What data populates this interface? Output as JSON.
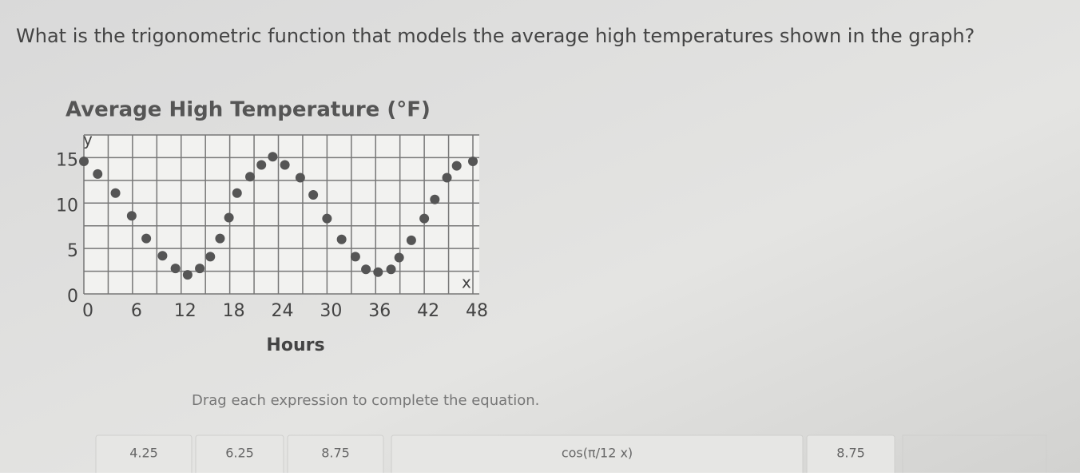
{
  "question": "What is the trigonometric function that models the average high temperatures shown in the graph?",
  "chart_data": {
    "type": "scatter",
    "title": "Average High Temperature (°F)",
    "x_label": "Hours",
    "x_axis_letter": "x",
    "y_axis_letter": "y",
    "x": [
      0,
      1.7,
      3.9,
      5.9,
      7.7,
      9.7,
      11.3,
      12.8,
      14.3,
      15.6,
      16.8,
      17.9,
      18.9,
      20.5,
      21.9,
      23.3,
      24.8,
      26.7,
      28.3,
      30,
      31.8,
      33.5,
      34.8,
      36.3,
      37.9,
      38.9,
      40.4,
      42,
      43.3,
      44.8,
      46,
      48
    ],
    "values": [
      14.6,
      13.2,
      11.1,
      8.6,
      6.1,
      4.2,
      2.8,
      2.1,
      2.8,
      4.1,
      6.1,
      8.4,
      11.1,
      12.9,
      14.2,
      15.1,
      14.2,
      12.8,
      10.9,
      8.3,
      6,
      4.1,
      2.7,
      2.4,
      2.7,
      4,
      5.9,
      8.3,
      10.4,
      12.8,
      14.1,
      14.6
    ],
    "color": "#555555",
    "xlim": [
      0,
      48
    ],
    "ylim": [
      0,
      17.5
    ],
    "xticks": [
      0,
      6,
      12,
      18,
      24,
      30,
      36,
      42,
      48
    ],
    "yticks": [
      0,
      5,
      10,
      15
    ],
    "xgrid": [
      0,
      3,
      6,
      9,
      12,
      15,
      18,
      21,
      24,
      27,
      30,
      33,
      36,
      39,
      42,
      45,
      48
    ],
    "ygrid": [
      0,
      2.5,
      5,
      7.5,
      10,
      12.5,
      15,
      17.5
    ],
    "grid": true
  },
  "instruction": "Drag each expression to complete the equation.",
  "tiles": [
    "4.25",
    "6.25",
    "8.75",
    "cos(π/12 x)",
    "8.75"
  ]
}
